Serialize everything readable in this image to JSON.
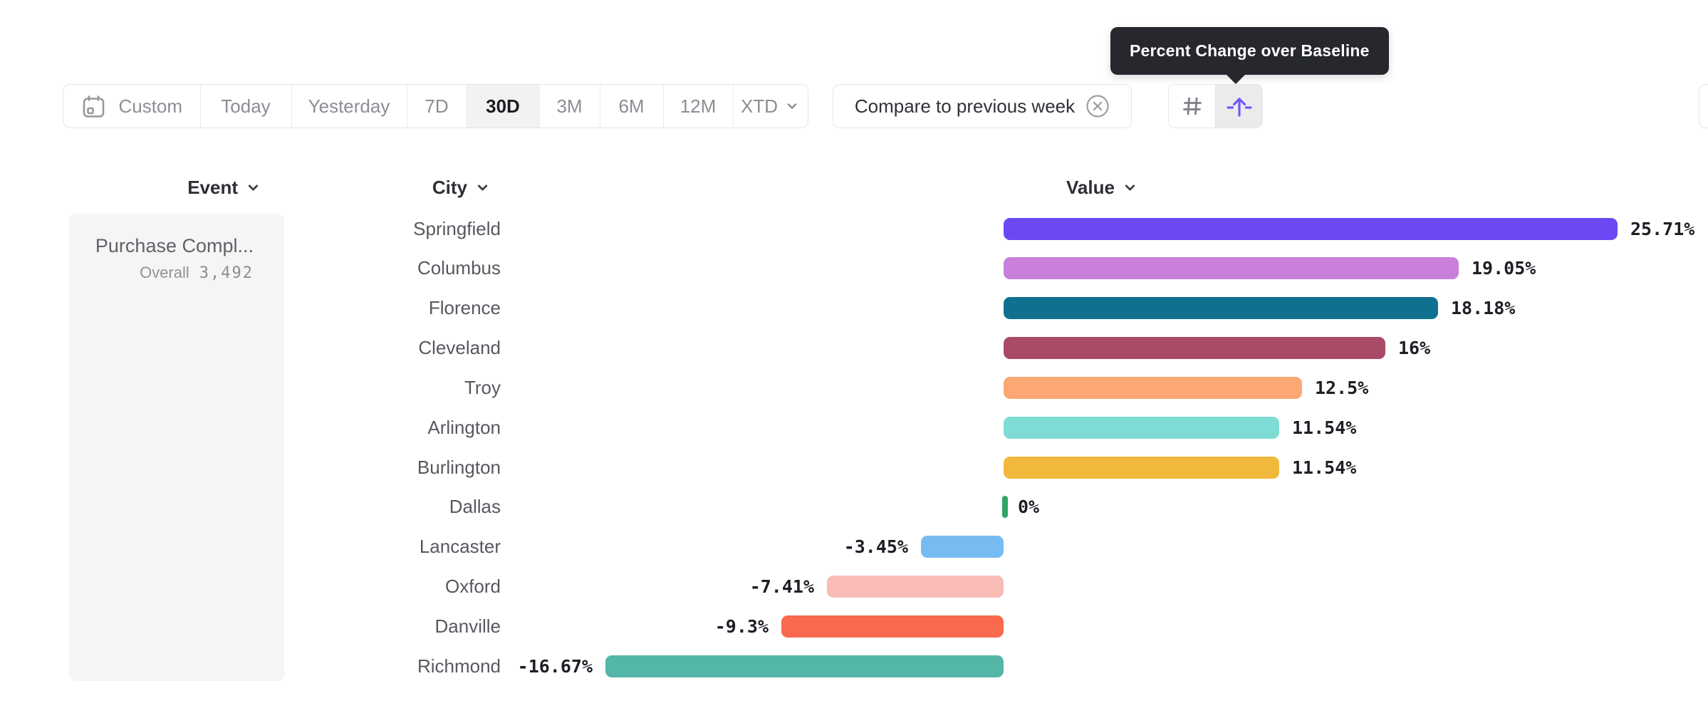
{
  "tooltip": {
    "text": "Percent Change over Baseline"
  },
  "toolbar": {
    "date_ranges": [
      {
        "label": "Custom",
        "selected": false,
        "icon": "calendar-icon"
      },
      {
        "label": "Today",
        "selected": false
      },
      {
        "label": "Yesterday",
        "selected": false
      },
      {
        "label": "7D",
        "selected": false
      },
      {
        "label": "30D",
        "selected": true
      },
      {
        "label": "3M",
        "selected": false
      },
      {
        "label": "6M",
        "selected": false
      },
      {
        "label": "12M",
        "selected": false
      },
      {
        "label": "XTD",
        "selected": false,
        "icon": "chevron-down-icon"
      }
    ],
    "compare_label": "Compare to previous week",
    "view_toggle": {
      "options": [
        "number-format",
        "percent-change-over-baseline"
      ],
      "selected": "percent-change-over-baseline"
    }
  },
  "headers": {
    "event": "Event",
    "city": "City",
    "value": "Value"
  },
  "event_panel": {
    "name": "Purchase Compl...",
    "overall_label": "Overall",
    "overall_value": "3,492"
  },
  "chart_data": {
    "type": "bar",
    "orientation": "horizontal",
    "title": "Percent Change over Baseline",
    "unit": "%",
    "categories": [
      "Springfield",
      "Columbus",
      "Florence",
      "Cleveland",
      "Troy",
      "Arlington",
      "Burlington",
      "Dallas",
      "Lancaster",
      "Oxford",
      "Danville",
      "Richmond"
    ],
    "values": [
      25.71,
      19.05,
      18.18,
      16,
      12.5,
      11.54,
      11.54,
      0,
      -3.45,
      -7.41,
      -9.3,
      -16.67
    ],
    "labels": [
      "25.71%",
      "19.05%",
      "18.18%",
      "16%",
      "12.5%",
      "11.54%",
      "11.54%",
      "0%",
      "-3.45%",
      "-7.41%",
      "-9.3%",
      "-16.67%"
    ],
    "colors": [
      "#6C48F2",
      "#C880DB",
      "#10718F",
      "#A94A67",
      "#FBA874",
      "#7FDCD4",
      "#F0B93C",
      "#2EA566",
      "#77BBF3",
      "#FABCB7",
      "#F8694D",
      "#54B6A7"
    ],
    "xlim": [
      -20,
      30
    ],
    "grid": false,
    "legend": false
  }
}
